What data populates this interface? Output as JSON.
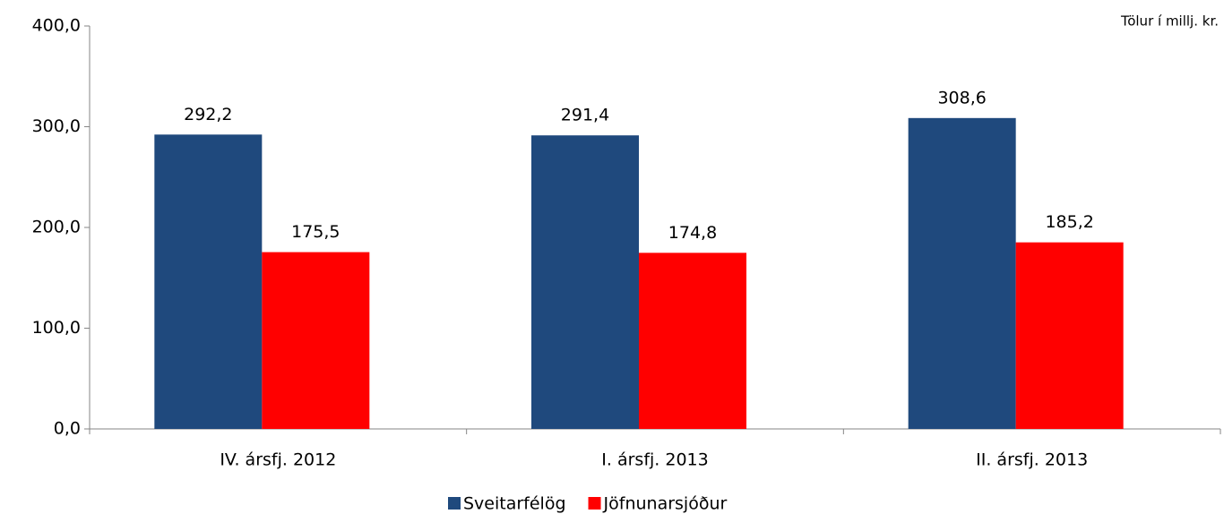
{
  "chart_data": {
    "type": "bar",
    "annotation": "Tölur í millj. kr.",
    "categories": [
      "IV. ársfj. 2012",
      "I. ársfj. 2013",
      "II. ársfj. 2013"
    ],
    "series": [
      {
        "name": "Sveitarfélög",
        "color": "#1f497d",
        "values": [
          292.2,
          291.4,
          308.6
        ],
        "value_labels": [
          "292,2",
          "291,4",
          "308,6"
        ]
      },
      {
        "name": "Jöfnunarsjóður",
        "color": "#ff0000",
        "values": [
          175.5,
          174.8,
          185.2
        ],
        "value_labels": [
          "175,5",
          "174,8",
          "185,2"
        ]
      }
    ],
    "ylim": [
      0,
      400
    ],
    "yticks": [
      {
        "value": 0,
        "label": "0,0"
      },
      {
        "value": 100,
        "label": "100,0"
      },
      {
        "value": 200,
        "label": "200,0"
      },
      {
        "value": 300,
        "label": "300,0"
      },
      {
        "value": 400,
        "label": "400,0"
      }
    ],
    "legend": "bottom"
  }
}
